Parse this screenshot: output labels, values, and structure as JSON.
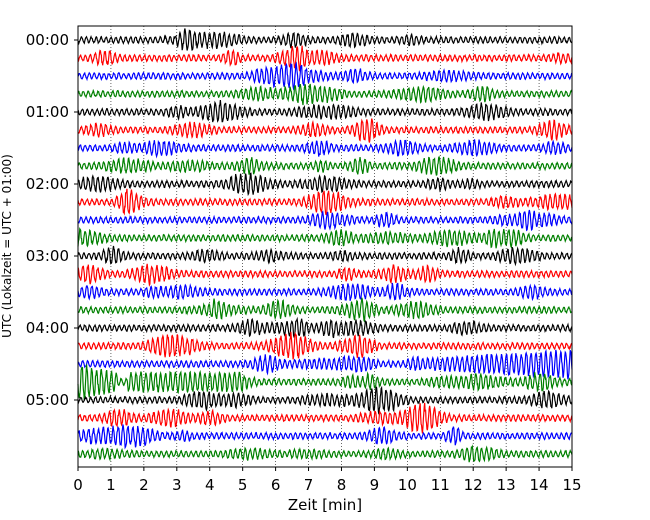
{
  "chart_data": {
    "type": "line",
    "title": "",
    "xlabel": "Zeit  [min]",
    "ylabel": "UTC (Lokalzeit = UTC + 01:00)",
    "xlim": [
      0,
      15
    ],
    "xticks": [
      "0",
      "1",
      "2",
      "3",
      "4",
      "5",
      "6",
      "7",
      "8",
      "9",
      "10",
      "11",
      "12",
      "13",
      "14",
      "15"
    ],
    "yticks": [
      "00:00",
      "01:00",
      "02:00",
      "03:00",
      "04:00",
      "05:00"
    ],
    "grid": "vertical dotted lines at each minute",
    "legend": "none",
    "trace_colors": [
      "#000000",
      "#ff0000",
      "#0000ff",
      "#008000"
    ],
    "trace_count": 24,
    "trace_interval_minutes": 15,
    "noise_amplitude_relative": 0.35,
    "events": [
      {
        "trace_index": 18,
        "start_min": 10.0,
        "end_min": 15.0,
        "amplitude_relative": 0.9,
        "description": "increasing amplitude signal"
      },
      {
        "trace_index": 19,
        "start_min": 0.0,
        "end_min": 1.2,
        "amplitude_relative": 1.1,
        "description": "large oscillation at start"
      },
      {
        "trace_index": 19,
        "start_min": 1.5,
        "end_min": 5.0,
        "amplitude_relative": 0.6,
        "description": "moderate oscillation"
      }
    ]
  }
}
